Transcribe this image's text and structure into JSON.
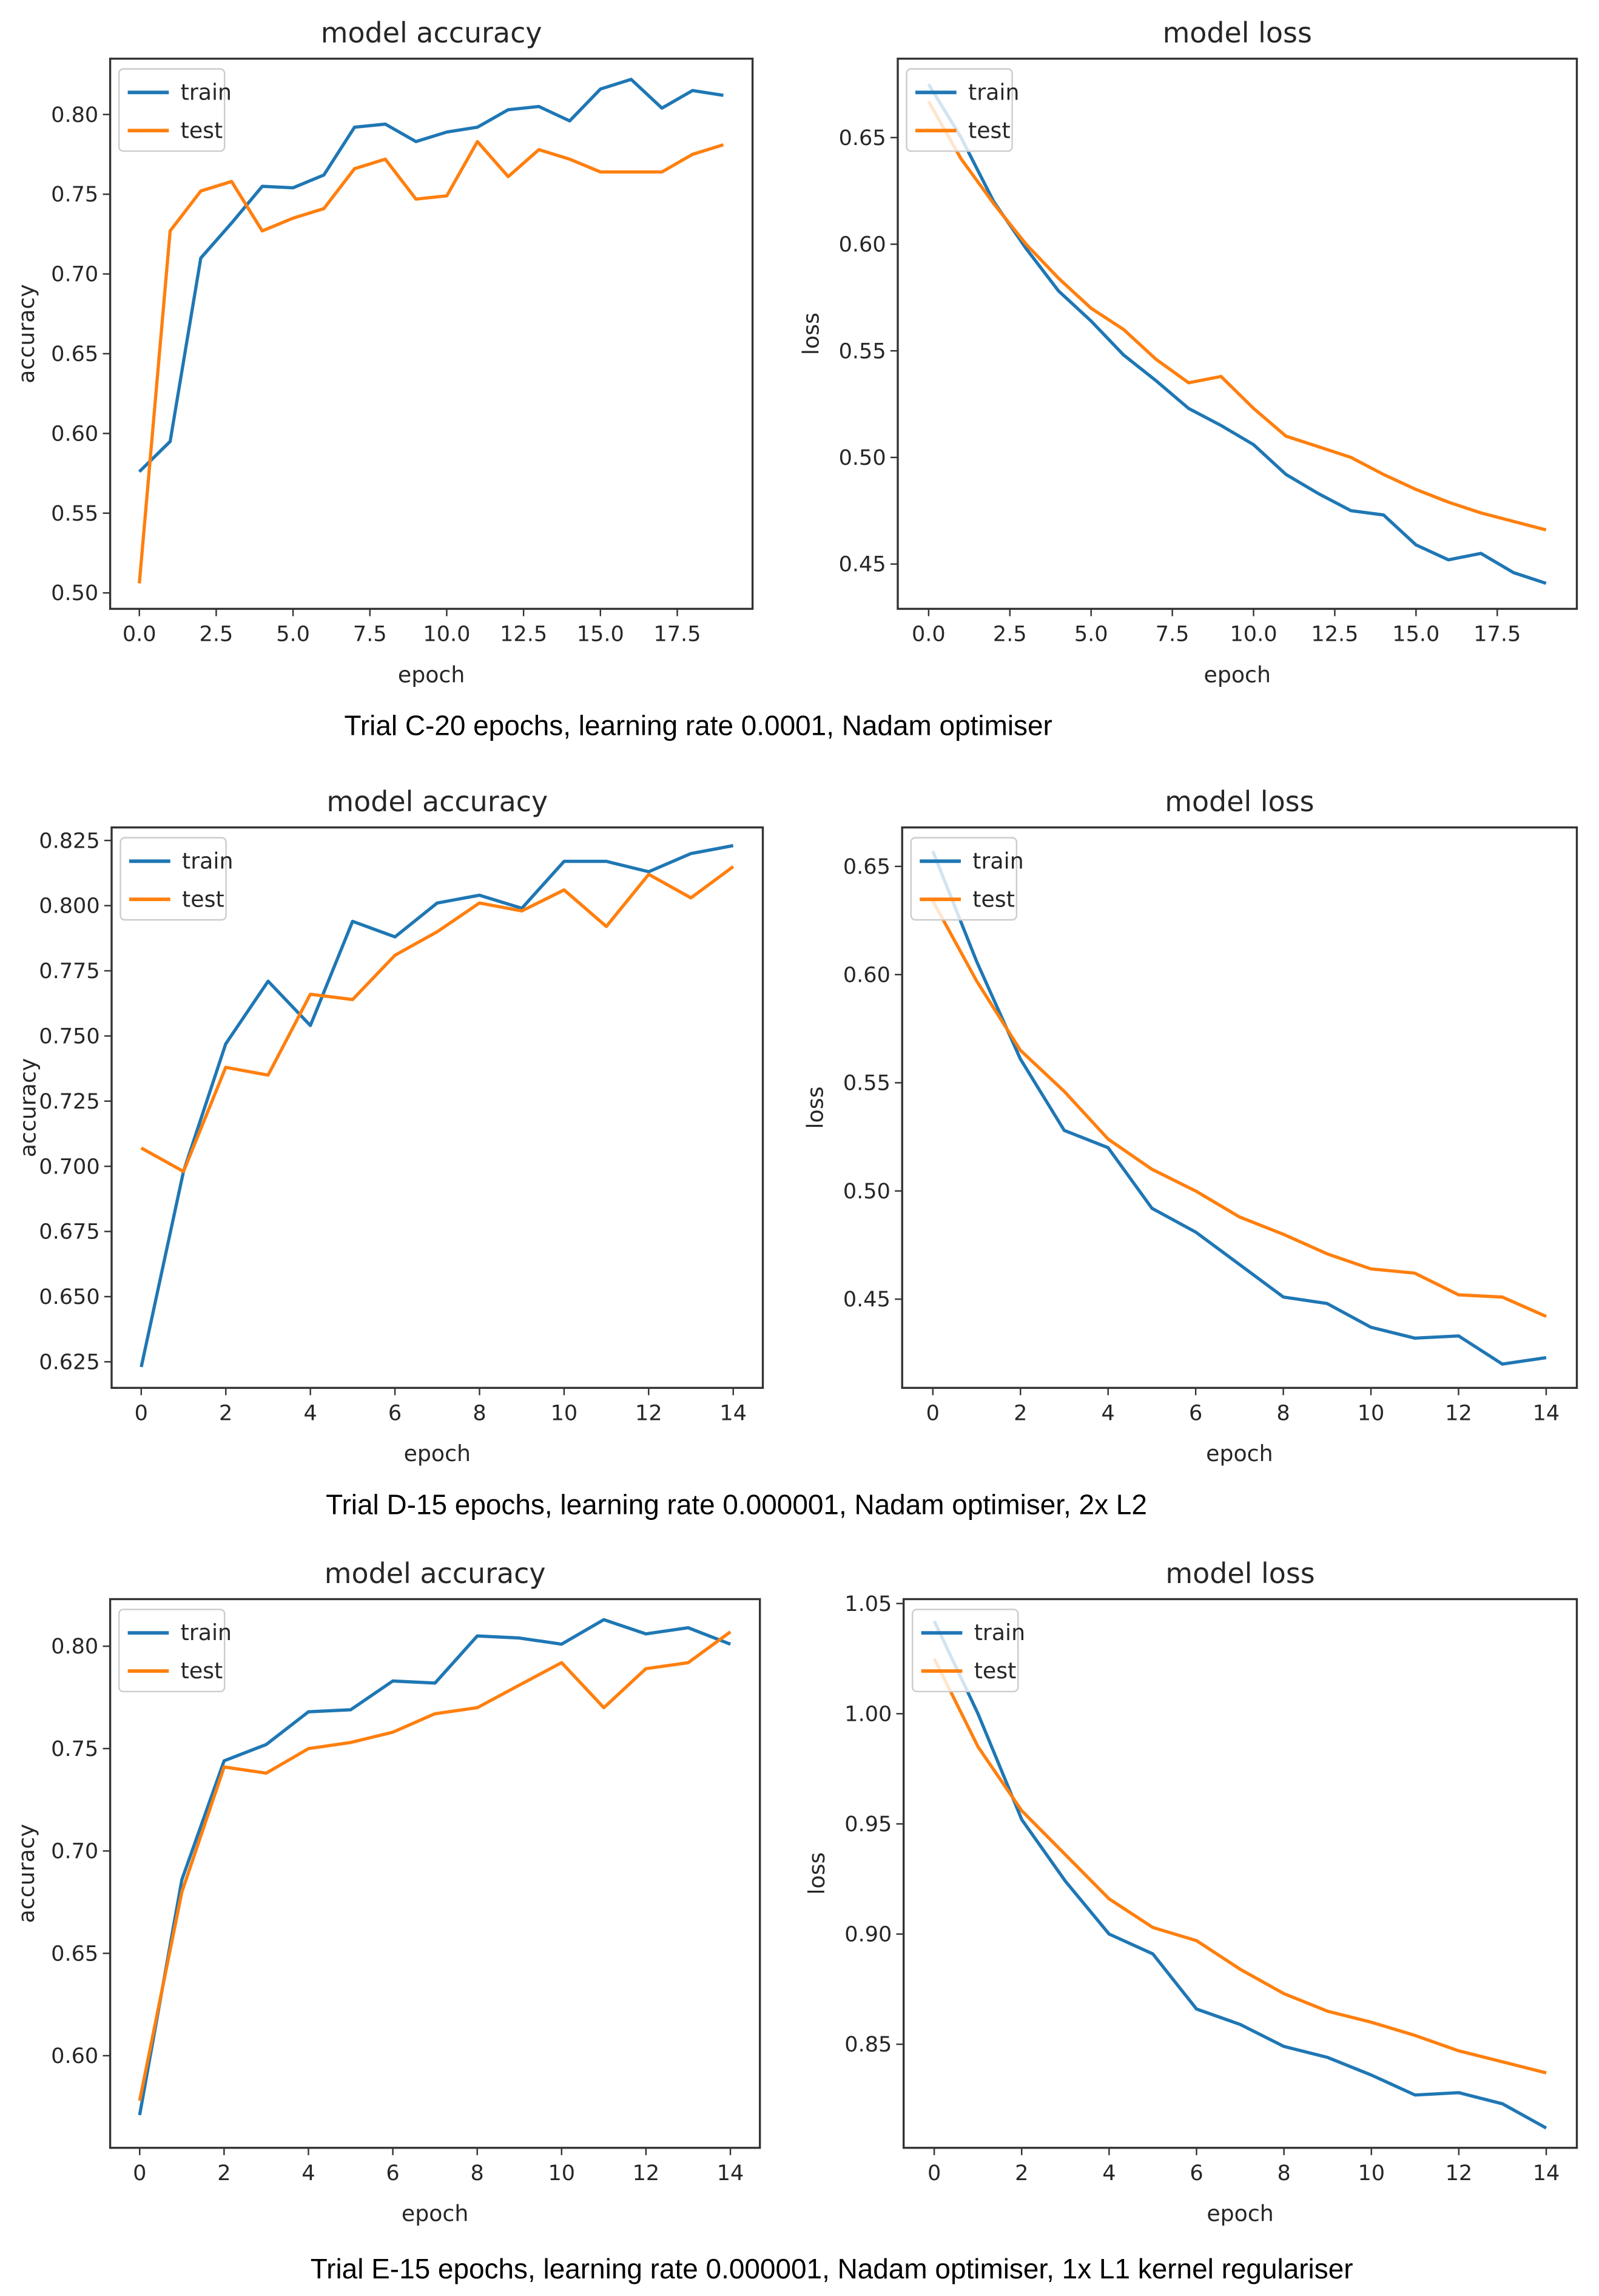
{
  "captions": [
    "Trial C-20 epochs, learning rate 0.0001, Nadam optimiser",
    "Trial D-15 epochs, learning rate 0.000001, Nadam optimiser, 2x L2",
    "Trial E-15 epochs, learning rate 0.000001, Nadam optimiser, 1x L1 kernel regulariser"
  ],
  "colors": {
    "train": "#1f77b4",
    "test": "#ff7f0e"
  },
  "chart_data": [
    {
      "type": "line",
      "title": "model accuracy",
      "xlabel": "epoch",
      "ylabel": "accuracy",
      "legend": "upper-left",
      "grid": false,
      "xlim": [
        -0.95,
        19.95
      ],
      "ylim": [
        0.49,
        0.835
      ],
      "xticks": [
        0,
        2.5,
        5,
        7.5,
        10,
        12.5,
        15,
        17.5
      ],
      "xtick_labels": [
        "0.0",
        "2.5",
        "5.0",
        "7.5",
        "10.0",
        "12.5",
        "15.0",
        "17.5"
      ],
      "yticks": [
        0.5,
        0.55,
        0.6,
        0.65,
        0.7,
        0.75,
        0.8
      ],
      "ytick_labels": [
        "0.50",
        "0.55",
        "0.60",
        "0.65",
        "0.70",
        "0.75",
        "0.80"
      ],
      "x": [
        0,
        1,
        2,
        3,
        4,
        5,
        6,
        7,
        8,
        9,
        10,
        11,
        12,
        13,
        14,
        15,
        16,
        17,
        18,
        19
      ],
      "series": [
        {
          "name": "train",
          "values": [
            0.576,
            0.595,
            0.71,
            0.732,
            0.755,
            0.754,
            0.762,
            0.792,
            0.794,
            0.783,
            0.789,
            0.792,
            0.803,
            0.805,
            0.796,
            0.816,
            0.822,
            0.804,
            0.815,
            0.812
          ]
        },
        {
          "name": "test",
          "values": [
            0.506,
            0.727,
            0.752,
            0.758,
            0.727,
            0.735,
            0.741,
            0.766,
            0.772,
            0.747,
            0.749,
            0.783,
            0.761,
            0.778,
            0.772,
            0.764,
            0.764,
            0.764,
            0.775,
            0.781
          ]
        }
      ]
    },
    {
      "type": "line",
      "title": "model loss",
      "xlabel": "epoch",
      "ylabel": "loss",
      "legend": "upper-left",
      "grid": false,
      "xlim": [
        -0.95,
        19.95
      ],
      "ylim": [
        0.429,
        0.687
      ],
      "xticks": [
        0,
        2.5,
        5,
        7.5,
        10,
        12.5,
        15,
        17.5
      ],
      "xtick_labels": [
        "0.0",
        "2.5",
        "5.0",
        "7.5",
        "10.0",
        "12.5",
        "15.0",
        "17.5"
      ],
      "yticks": [
        0.45,
        0.5,
        0.55,
        0.6,
        0.65
      ],
      "ytick_labels": [
        "0.45",
        "0.50",
        "0.55",
        "0.60",
        "0.65"
      ],
      "x": [
        0,
        1,
        2,
        3,
        4,
        5,
        6,
        7,
        8,
        9,
        10,
        11,
        12,
        13,
        14,
        15,
        16,
        17,
        18,
        19
      ],
      "series": [
        {
          "name": "train",
          "values": [
            0.675,
            0.65,
            0.62,
            0.598,
            0.578,
            0.564,
            0.548,
            0.536,
            0.523,
            0.515,
            0.506,
            0.492,
            0.483,
            0.475,
            0.473,
            0.459,
            0.452,
            0.455,
            0.446,
            0.441
          ]
        },
        {
          "name": "test",
          "values": [
            0.667,
            0.64,
            0.619,
            0.6,
            0.584,
            0.57,
            0.56,
            0.546,
            0.535,
            0.538,
            0.523,
            0.51,
            0.505,
            0.5,
            0.492,
            0.485,
            0.479,
            0.474,
            0.47,
            0.466
          ]
        }
      ]
    },
    {
      "type": "line",
      "title": "model accuracy",
      "xlabel": "epoch",
      "ylabel": "accuracy",
      "legend": "upper-left",
      "grid": false,
      "xlim": [
        -0.7,
        14.7
      ],
      "ylim": [
        0.615,
        0.83
      ],
      "xticks": [
        0,
        2,
        4,
        6,
        8,
        10,
        12,
        14
      ],
      "xtick_labels": [
        "0",
        "2",
        "4",
        "6",
        "8",
        "10",
        "12",
        "14"
      ],
      "yticks": [
        0.625,
        0.65,
        0.675,
        0.7,
        0.725,
        0.75,
        0.775,
        0.8,
        0.825
      ],
      "ytick_labels": [
        "0.625",
        "0.650",
        "0.675",
        "0.700",
        "0.725",
        "0.750",
        "0.775",
        "0.800",
        "0.825"
      ],
      "x": [
        0,
        1,
        2,
        3,
        4,
        5,
        6,
        7,
        8,
        9,
        10,
        11,
        12,
        13,
        14
      ],
      "series": [
        {
          "name": "train",
          "values": [
            0.623,
            0.698,
            0.747,
            0.771,
            0.754,
            0.794,
            0.788,
            0.801,
            0.804,
            0.799,
            0.817,
            0.817,
            0.813,
            0.82,
            0.823
          ]
        },
        {
          "name": "test",
          "values": [
            0.707,
            0.698,
            0.738,
            0.735,
            0.766,
            0.764,
            0.781,
            0.79,
            0.801,
            0.798,
            0.806,
            0.792,
            0.812,
            0.803,
            0.815
          ]
        }
      ]
    },
    {
      "type": "line",
      "title": "model loss",
      "xlabel": "epoch",
      "ylabel": "loss",
      "legend": "upper-left",
      "grid": false,
      "xlim": [
        -0.7,
        14.7
      ],
      "ylim": [
        0.409,
        0.668
      ],
      "xticks": [
        0,
        2,
        4,
        6,
        8,
        10,
        12,
        14
      ],
      "xtick_labels": [
        "0",
        "2",
        "4",
        "6",
        "8",
        "10",
        "12",
        "14"
      ],
      "yticks": [
        0.45,
        0.5,
        0.55,
        0.6,
        0.65
      ],
      "ytick_labels": [
        "0.45",
        "0.50",
        "0.55",
        "0.60",
        "0.65"
      ],
      "x": [
        0,
        1,
        2,
        3,
        4,
        5,
        6,
        7,
        8,
        9,
        10,
        11,
        12,
        13,
        14
      ],
      "series": [
        {
          "name": "train",
          "values": [
            0.657,
            0.606,
            0.561,
            0.528,
            0.52,
            0.492,
            0.481,
            0.466,
            0.451,
            0.448,
            0.437,
            0.432,
            0.433,
            0.42,
            0.423
          ]
        },
        {
          "name": "test",
          "values": [
            0.634,
            0.597,
            0.565,
            0.546,
            0.524,
            0.51,
            0.5,
            0.488,
            0.48,
            0.471,
            0.464,
            0.462,
            0.452,
            0.451,
            0.442
          ]
        }
      ]
    },
    {
      "type": "line",
      "title": "model accuracy",
      "xlabel": "epoch",
      "ylabel": "accuracy",
      "legend": "upper-left",
      "grid": false,
      "xlim": [
        -0.7,
        14.7
      ],
      "ylim": [
        0.555,
        0.823
      ],
      "xticks": [
        0,
        2,
        4,
        6,
        8,
        10,
        12,
        14
      ],
      "xtick_labels": [
        "0",
        "2",
        "4",
        "6",
        "8",
        "10",
        "12",
        "14"
      ],
      "yticks": [
        0.6,
        0.65,
        0.7,
        0.75,
        0.8
      ],
      "ytick_labels": [
        "0.60",
        "0.65",
        "0.70",
        "0.75",
        "0.80"
      ],
      "x": [
        0,
        1,
        2,
        3,
        4,
        5,
        6,
        7,
        8,
        9,
        10,
        11,
        12,
        13,
        14
      ],
      "series": [
        {
          "name": "train",
          "values": [
            0.571,
            0.686,
            0.744,
            0.752,
            0.768,
            0.769,
            0.783,
            0.782,
            0.805,
            0.804,
            0.801,
            0.813,
            0.806,
            0.809,
            0.801
          ]
        },
        {
          "name": "test",
          "values": [
            0.578,
            0.68,
            0.741,
            0.738,
            0.75,
            0.753,
            0.758,
            0.767,
            0.77,
            0.781,
            0.792,
            0.77,
            0.789,
            0.792,
            0.807
          ]
        }
      ]
    },
    {
      "type": "line",
      "title": "model loss",
      "xlabel": "epoch",
      "ylabel": "loss",
      "legend": "upper-left",
      "grid": false,
      "xlim": [
        -0.7,
        14.7
      ],
      "ylim": [
        0.803,
        1.052
      ],
      "xticks": [
        0,
        2,
        4,
        6,
        8,
        10,
        12,
        14
      ],
      "xtick_labels": [
        "0",
        "2",
        "4",
        "6",
        "8",
        "10",
        "12",
        "14"
      ],
      "yticks": [
        0.85,
        0.9,
        0.95,
        1.0,
        1.05
      ],
      "ytick_labels": [
        "0.85",
        "0.90",
        "0.95",
        "1.00",
        "1.05"
      ],
      "x": [
        0,
        1,
        2,
        3,
        4,
        5,
        6,
        7,
        8,
        9,
        10,
        11,
        12,
        13,
        14
      ],
      "series": [
        {
          "name": "train",
          "values": [
            1.042,
            1.0,
            0.952,
            0.924,
            0.9,
            0.891,
            0.866,
            0.859,
            0.849,
            0.844,
            0.836,
            0.827,
            0.828,
            0.823,
            0.812
          ]
        },
        {
          "name": "test",
          "values": [
            1.025,
            0.985,
            0.956,
            0.936,
            0.916,
            0.903,
            0.897,
            0.884,
            0.873,
            0.865,
            0.86,
            0.854,
            0.847,
            0.842,
            0.837
          ]
        }
      ]
    }
  ]
}
